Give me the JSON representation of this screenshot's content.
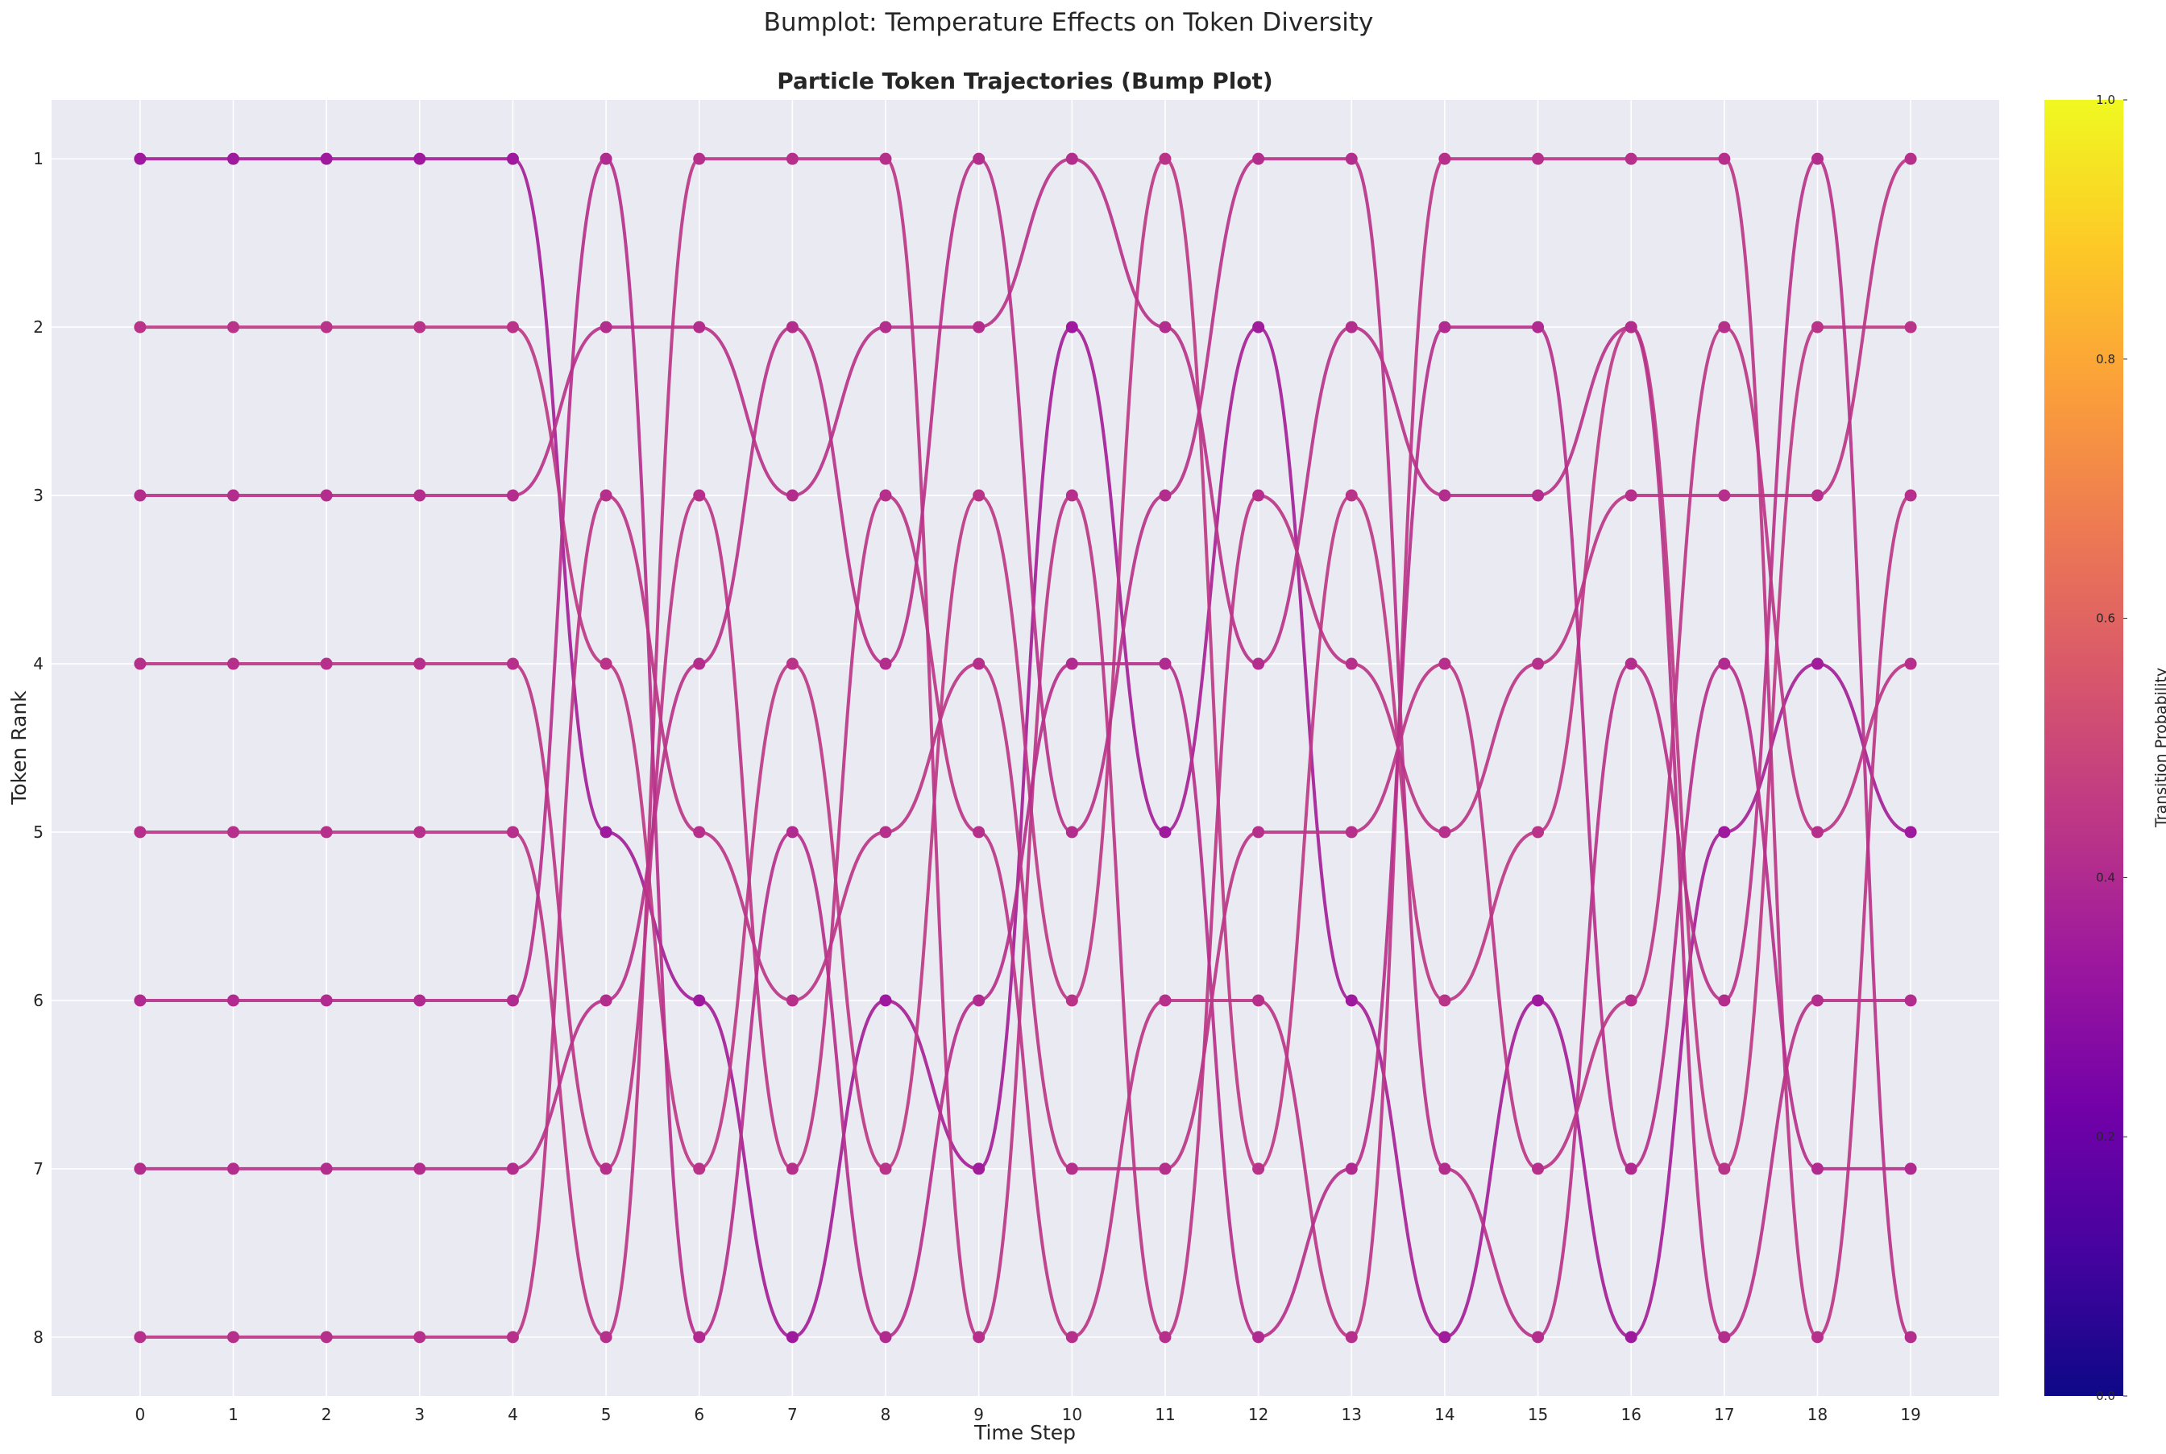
{
  "figure": {
    "suptitle": "Bumplot: Temperature Effects on Token Diversity"
  },
  "chart_data": {
    "type": "line",
    "title": "Particle Token Trajectories (Bump Plot)",
    "xlabel": "Time Step",
    "ylabel": "Token Rank",
    "x": [
      0,
      1,
      2,
      3,
      4,
      5,
      6,
      7,
      8,
      9,
      10,
      11,
      12,
      13,
      14,
      15,
      16,
      17,
      18,
      19
    ],
    "xlim": [
      -0.95,
      19.95
    ],
    "ylim": [
      8.35,
      0.65
    ],
    "yticks": [
      1,
      2,
      3,
      4,
      5,
      6,
      7,
      8
    ],
    "y_inverted": true,
    "grid": true,
    "series": [
      {
        "values": [
          1,
          1,
          1,
          1,
          1,
          5,
          6,
          8,
          6,
          7,
          2,
          5,
          2,
          6,
          8,
          6,
          8,
          5,
          4,
          5
        ],
        "probs": [
          0.36,
          0.36,
          0.36,
          0.36,
          0.36,
          0.36,
          0.36,
          0.36,
          0.37,
          0.36,
          0.36,
          0.37,
          0.36,
          0.37,
          0.36,
          0.36,
          0.36,
          0.37,
          0.36
        ]
      },
      {
        "values": [
          2,
          2,
          2,
          2,
          2,
          4,
          7,
          4,
          7,
          3,
          6,
          1,
          7,
          3,
          6,
          5,
          2,
          7,
          2,
          2
        ],
        "probs": [
          0.45,
          0.45,
          0.45,
          0.45,
          0.45,
          0.45,
          0.45,
          0.45,
          0.45,
          0.45,
          0.45,
          0.45,
          0.45,
          0.45,
          0.45,
          0.45,
          0.45,
          0.45,
          0.45
        ]
      },
      {
        "values": [
          3,
          3,
          3,
          3,
          3,
          2,
          2,
          3,
          2,
          2,
          1,
          2,
          4,
          2,
          3,
          3,
          2,
          8,
          6,
          6
        ],
        "probs": [
          0.43,
          0.43,
          0.43,
          0.43,
          0.43,
          0.43,
          0.43,
          0.43,
          0.43,
          0.43,
          0.43,
          0.43,
          0.43,
          0.43,
          0.43,
          0.43,
          0.43,
          0.43,
          0.43
        ]
      },
      {
        "values": [
          4,
          4,
          4,
          4,
          4,
          7,
          3,
          7,
          3,
          5,
          8,
          6,
          6,
          8,
          1,
          1,
          1,
          1,
          8,
          3
        ],
        "probs": [
          0.44,
          0.44,
          0.44,
          0.44,
          0.44,
          0.44,
          0.44,
          0.44,
          0.44,
          0.44,
          0.44,
          0.44,
          0.44,
          0.44,
          0.44,
          0.44,
          0.44,
          0.44,
          0.44
        ]
      },
      {
        "values": [
          5,
          5,
          5,
          5,
          5,
          8,
          1,
          1,
          1,
          8,
          3,
          8,
          3,
          4,
          5,
          4,
          3,
          3,
          3,
          1
        ],
        "probs": [
          0.44,
          0.44,
          0.44,
          0.44,
          0.44,
          0.44,
          0.44,
          0.44,
          0.44,
          0.44,
          0.44,
          0.44,
          0.44,
          0.44,
          0.44,
          0.44,
          0.44,
          0.44,
          0.44
        ]
      },
      {
        "values": [
          6,
          6,
          6,
          6,
          6,
          1,
          8,
          5,
          8,
          6,
          4,
          4,
          8,
          7,
          2,
          2,
          7,
          4,
          7,
          7
        ],
        "probs": [
          0.42,
          0.42,
          0.42,
          0.42,
          0.42,
          0.42,
          0.42,
          0.42,
          0.42,
          0.42,
          0.42,
          0.42,
          0.42,
          0.42,
          0.42,
          0.42,
          0.42,
          0.42,
          0.42
        ]
      },
      {
        "values": [
          7,
          7,
          7,
          7,
          7,
          6,
          4,
          2,
          4,
          1,
          5,
          3,
          1,
          1,
          7,
          8,
          4,
          6,
          1,
          8
        ],
        "probs": [
          0.43,
          0.43,
          0.43,
          0.43,
          0.43,
          0.43,
          0.43,
          0.43,
          0.43,
          0.43,
          0.43,
          0.43,
          0.43,
          0.43,
          0.43,
          0.43,
          0.43,
          0.43,
          0.43
        ]
      },
      {
        "values": [
          8,
          8,
          8,
          8,
          8,
          3,
          5,
          6,
          5,
          4,
          7,
          7,
          5,
          5,
          4,
          7,
          6,
          2,
          5,
          4
        ],
        "probs": [
          0.44,
          0.44,
          0.44,
          0.44,
          0.44,
          0.44,
          0.44,
          0.44,
          0.44,
          0.44,
          0.44,
          0.44,
          0.44,
          0.44,
          0.44,
          0.44,
          0.44,
          0.44,
          0.44
        ]
      }
    ],
    "colorbar": {
      "label": "Transition Probability",
      "colormap": "plasma",
      "range": [
        0.0,
        1.0
      ],
      "ticks": [
        "0.0",
        "0.2",
        "0.4",
        "0.6",
        "0.8",
        "1.0"
      ]
    }
  },
  "colors": {
    "axes_bg": "#eaeaf2",
    "grid": "#ffffff",
    "plasma_stops": [
      "#0d0887",
      "#46039f",
      "#7201a8",
      "#9c179e",
      "#bd3786",
      "#d8576b",
      "#ed7953",
      "#fb9f3a",
      "#fdca26",
      "#f0f921"
    ]
  }
}
